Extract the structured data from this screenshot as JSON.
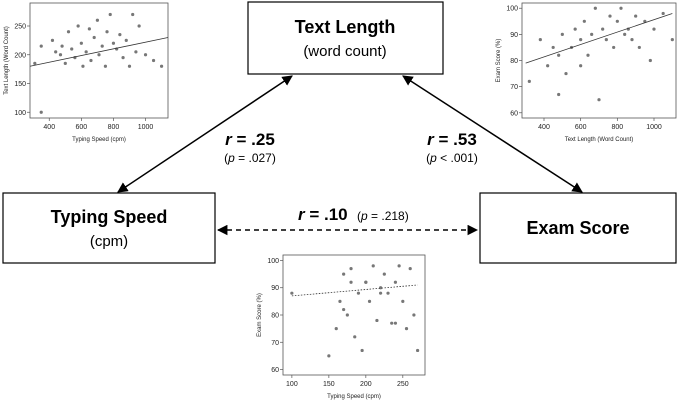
{
  "nodes": [
    {
      "label": "Text Length",
      "sublabel": "(word count)"
    },
    {
      "label": "Typing Speed",
      "sublabel": "(cpm)"
    },
    {
      "label": "Exam Score"
    }
  ],
  "edges": [
    {
      "r": {
        "symbol": "r",
        "text": " = .25"
      },
      "p": {
        "open": "(",
        "symbol": "p",
        "text": " = .027)"
      }
    },
    {
      "r": {
        "symbol": "r",
        "text": " = .53"
      },
      "p": {
        "open": "(",
        "symbol": "p",
        "text": " < .001)"
      }
    },
    {
      "r": {
        "symbol": "r",
        "text": " = .10"
      },
      "p": {
        "open": "(",
        "symbol": "p",
        "text": " = .218)"
      }
    }
  ],
  "chart_data": [
    {
      "type": "scatter",
      "xlabel": "Typing Speed (cpm)",
      "ylabel": "Text Length (Word Count)",
      "x": [
        310,
        350,
        420,
        440,
        470,
        480,
        500,
        520,
        540,
        560,
        580,
        600,
        610,
        630,
        650,
        660,
        680,
        700,
        710,
        730,
        750,
        760,
        780,
        800,
        820,
        840,
        860,
        880,
        900,
        920,
        940,
        960,
        1000,
        1050,
        1100,
        350
      ],
      "y": [
        185,
        100,
        225,
        205,
        200,
        215,
        185,
        240,
        210,
        195,
        250,
        220,
        180,
        205,
        245,
        190,
        230,
        260,
        200,
        215,
        180,
        240,
        270,
        220,
        210,
        235,
        195,
        225,
        180,
        270,
        205,
        250,
        200,
        190,
        180,
        215
      ],
      "color": "#777777",
      "xlim": [
        280,
        1140
      ],
      "ylim": [
        90,
        290
      ],
      "xticks": [
        400,
        600,
        800,
        1000
      ],
      "yticks": [
        100,
        150,
        200,
        250
      ],
      "trendline": {
        "x": [
          280,
          1140
        ],
        "y": [
          180,
          230
        ],
        "style": "solid"
      }
    },
    {
      "type": "scatter",
      "xlabel": "Text Length (Word Count)",
      "ylabel": "Exam Score (%)",
      "x": [
        320,
        380,
        420,
        450,
        480,
        500,
        520,
        550,
        570,
        600,
        620,
        640,
        660,
        680,
        700,
        720,
        740,
        760,
        780,
        800,
        820,
        840,
        860,
        880,
        900,
        920,
        950,
        980,
        1000,
        1050,
        1100,
        480,
        600
      ],
      "y": [
        72,
        88,
        78,
        85,
        67,
        90,
        75,
        85,
        92,
        88,
        95,
        82,
        90,
        100,
        65,
        92,
        88,
        97,
        85,
        95,
        100,
        90,
        92,
        88,
        97,
        85,
        95,
        80,
        92,
        98,
        88,
        82,
        78
      ],
      "color": "#777777",
      "xlim": [
        280,
        1120
      ],
      "ylim": [
        58,
        102
      ],
      "xticks": [
        400,
        600,
        800,
        1000
      ],
      "yticks": [
        60,
        70,
        80,
        90,
        100
      ],
      "trendline": {
        "x": [
          300,
          1100
        ],
        "y": [
          79,
          98
        ],
        "style": "solid"
      }
    },
    {
      "type": "scatter",
      "xlabel": "Typing Speed (cpm)",
      "ylabel": "Exam Score (%)",
      "x": [
        100,
        150,
        160,
        165,
        170,
        175,
        180,
        185,
        190,
        195,
        200,
        205,
        210,
        215,
        220,
        225,
        230,
        235,
        240,
        245,
        250,
        255,
        260,
        265,
        270,
        180,
        200,
        220,
        240,
        170
      ],
      "y": [
        88,
        65,
        75,
        85,
        95,
        80,
        92,
        72,
        88,
        67,
        92,
        85,
        98,
        78,
        90,
        95,
        88,
        77,
        92,
        98,
        85,
        75,
        97,
        80,
        67,
        97,
        92,
        88,
        77,
        82
      ],
      "color": "#777777",
      "xlim": [
        88,
        280
      ],
      "ylim": [
        58,
        102
      ],
      "xticks": [
        100,
        150,
        200,
        250
      ],
      "yticks": [
        60,
        70,
        80,
        90,
        100
      ],
      "trendline": {
        "x": [
          100,
          270
        ],
        "y": [
          87,
          91
        ],
        "style": "dotted"
      }
    }
  ]
}
